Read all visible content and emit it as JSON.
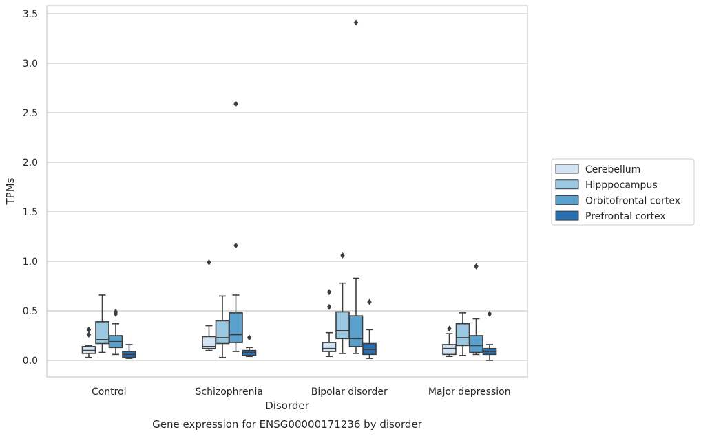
{
  "chart_data": {
    "type": "box",
    "xlabel": "Disorder",
    "ylabel": "TPMs",
    "caption": "Gene expression for ENSG00000171236 by disorder",
    "ylim": [
      -0.17,
      3.6
    ],
    "yticks": [
      "0.0",
      "0.5",
      "1.0",
      "1.5",
      "2.0",
      "2.5",
      "3.0",
      "3.5"
    ],
    "ytick_values": [
      0,
      0.5,
      1.0,
      1.5,
      2.0,
      2.5,
      3.0,
      3.5
    ],
    "grid": "horizontal",
    "legend_position": "right",
    "categories": [
      "Control",
      "Schizophrenia",
      "Bipolar disorder",
      "Major depression"
    ],
    "series": [
      {
        "name": "Cerebellum",
        "color": "#d2e3f3",
        "boxes": [
          {
            "whisker_low": 0.03,
            "q1": 0.07,
            "median": 0.1,
            "q3": 0.14,
            "whisker_high": 0.15,
            "outliers": [
              0.26,
              0.31
            ]
          },
          {
            "whisker_low": 0.1,
            "q1": 0.12,
            "median": 0.14,
            "q3": 0.24,
            "whisker_high": 0.35,
            "outliers": [
              0.99
            ]
          },
          {
            "whisker_low": 0.04,
            "q1": 0.09,
            "median": 0.12,
            "q3": 0.18,
            "whisker_high": 0.28,
            "outliers": [
              0.54,
              0.69
            ]
          },
          {
            "whisker_low": 0.04,
            "q1": 0.06,
            "median": 0.12,
            "q3": 0.16,
            "whisker_high": 0.27,
            "outliers": [
              0.32
            ]
          }
        ]
      },
      {
        "name": "Hipppocampus",
        "color": "#9ac8e0",
        "boxes": [
          {
            "whisker_low": 0.08,
            "q1": 0.17,
            "median": 0.21,
            "q3": 0.39,
            "whisker_high": 0.66,
            "outliers": []
          },
          {
            "whisker_low": 0.03,
            "q1": 0.17,
            "median": 0.23,
            "q3": 0.4,
            "whisker_high": 0.65,
            "outliers": []
          },
          {
            "whisker_low": 0.07,
            "q1": 0.22,
            "median": 0.3,
            "q3": 0.49,
            "whisker_high": 0.78,
            "outliers": [
              1.06
            ]
          },
          {
            "whisker_low": 0.05,
            "q1": 0.15,
            "median": 0.23,
            "q3": 0.37,
            "whisker_high": 0.48,
            "outliers": []
          }
        ]
      },
      {
        "name": "Orbitofrontal cortex",
        "color": "#5aa0cd",
        "boxes": [
          {
            "whisker_low": 0.06,
            "q1": 0.13,
            "median": 0.19,
            "q3": 0.25,
            "whisker_high": 0.37,
            "outliers": [
              0.47,
              0.49
            ]
          },
          {
            "whisker_low": 0.09,
            "q1": 0.18,
            "median": 0.26,
            "q3": 0.48,
            "whisker_high": 0.66,
            "outliers": [
              2.59,
              1.16
            ]
          },
          {
            "whisker_low": 0.07,
            "q1": 0.14,
            "median": 0.22,
            "q3": 0.45,
            "whisker_high": 0.83,
            "outliers": [
              3.41
            ]
          },
          {
            "whisker_low": 0.06,
            "q1": 0.08,
            "median": 0.15,
            "q3": 0.25,
            "whisker_high": 0.42,
            "outliers": [
              0.95
            ]
          }
        ]
      },
      {
        "name": "Prefrontal cortex",
        "color": "#2a6fb0",
        "boxes": [
          {
            "whisker_low": 0.02,
            "q1": 0.03,
            "median": 0.06,
            "q3": 0.09,
            "whisker_high": 0.16,
            "outliers": []
          },
          {
            "whisker_low": 0.04,
            "q1": 0.05,
            "median": 0.08,
            "q3": 0.1,
            "whisker_high": 0.13,
            "outliers": [
              0.23
            ]
          },
          {
            "whisker_low": 0.02,
            "q1": 0.06,
            "median": 0.11,
            "q3": 0.17,
            "whisker_high": 0.31,
            "outliers": [
              0.59
            ]
          },
          {
            "whisker_low": 0.0,
            "q1": 0.06,
            "median": 0.09,
            "q3": 0.12,
            "whisker_high": 0.16,
            "outliers": [
              0.47
            ]
          }
        ]
      }
    ]
  }
}
